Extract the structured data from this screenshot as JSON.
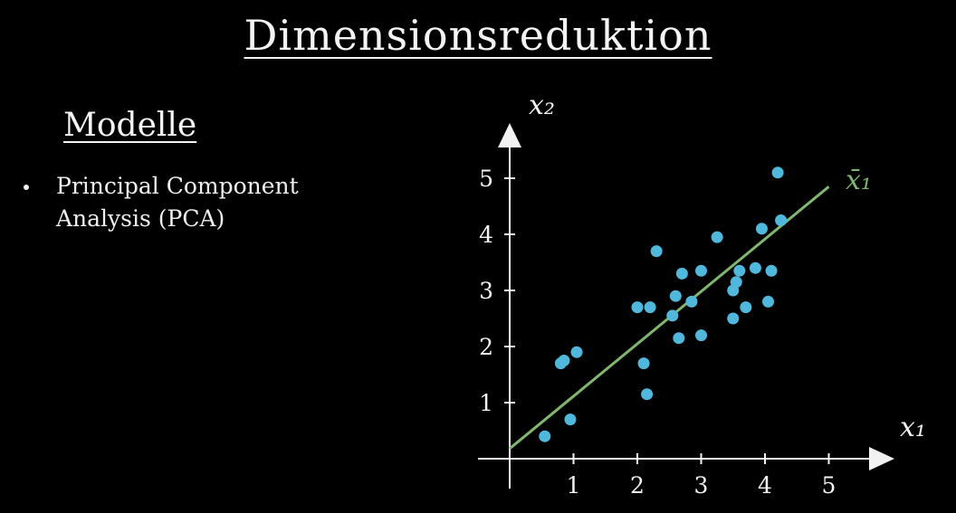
{
  "slide": {
    "title": "Dimensionsreduktion",
    "subtitle": "Modelle",
    "bullets": [
      "Principal Component Analysis (PCA)"
    ]
  },
  "colors": {
    "background": "#000000",
    "text": "#f2f2f2",
    "points": "#4fb9dd",
    "fit_line": "#7fb86a"
  },
  "chart_data": {
    "type": "scatter",
    "title": "",
    "xlabel": "x₁",
    "ylabel": "x₂",
    "line_label": "x̄₁",
    "xlim": [
      0,
      5.9
    ],
    "ylim": [
      0,
      5.8
    ],
    "x_ticks": [
      "1",
      "2",
      "3",
      "4",
      "5"
    ],
    "y_ticks": [
      "1",
      "2",
      "3",
      "4",
      "5"
    ],
    "grid": false,
    "fit_line": {
      "x": [
        0,
        5
      ],
      "y": [
        0.18,
        4.85
      ]
    },
    "points": [
      {
        "x": 0.55,
        "y": 0.4
      },
      {
        "x": 0.95,
        "y": 0.7
      },
      {
        "x": 0.8,
        "y": 1.7
      },
      {
        "x": 0.85,
        "y": 1.75
      },
      {
        "x": 1.05,
        "y": 1.9
      },
      {
        "x": 2.0,
        "y": 2.7
      },
      {
        "x": 2.1,
        "y": 1.7
      },
      {
        "x": 2.15,
        "y": 1.15
      },
      {
        "x": 2.2,
        "y": 2.7
      },
      {
        "x": 2.3,
        "y": 3.7
      },
      {
        "x": 2.55,
        "y": 2.55
      },
      {
        "x": 2.6,
        "y": 2.9
      },
      {
        "x": 2.65,
        "y": 2.15
      },
      {
        "x": 2.7,
        "y": 3.3
      },
      {
        "x": 2.85,
        "y": 2.8
      },
      {
        "x": 3.0,
        "y": 2.2
      },
      {
        "x": 3.0,
        "y": 3.35
      },
      {
        "x": 3.25,
        "y": 3.95
      },
      {
        "x": 3.5,
        "y": 2.5
      },
      {
        "x": 3.5,
        "y": 3.0
      },
      {
        "x": 3.55,
        "y": 3.15
      },
      {
        "x": 3.6,
        "y": 3.35
      },
      {
        "x": 3.7,
        "y": 2.7
      },
      {
        "x": 3.85,
        "y": 3.4
      },
      {
        "x": 3.95,
        "y": 4.1
      },
      {
        "x": 4.05,
        "y": 2.8
      },
      {
        "x": 4.1,
        "y": 3.35
      },
      {
        "x": 4.2,
        "y": 5.1
      },
      {
        "x": 4.25,
        "y": 4.25
      }
    ]
  }
}
